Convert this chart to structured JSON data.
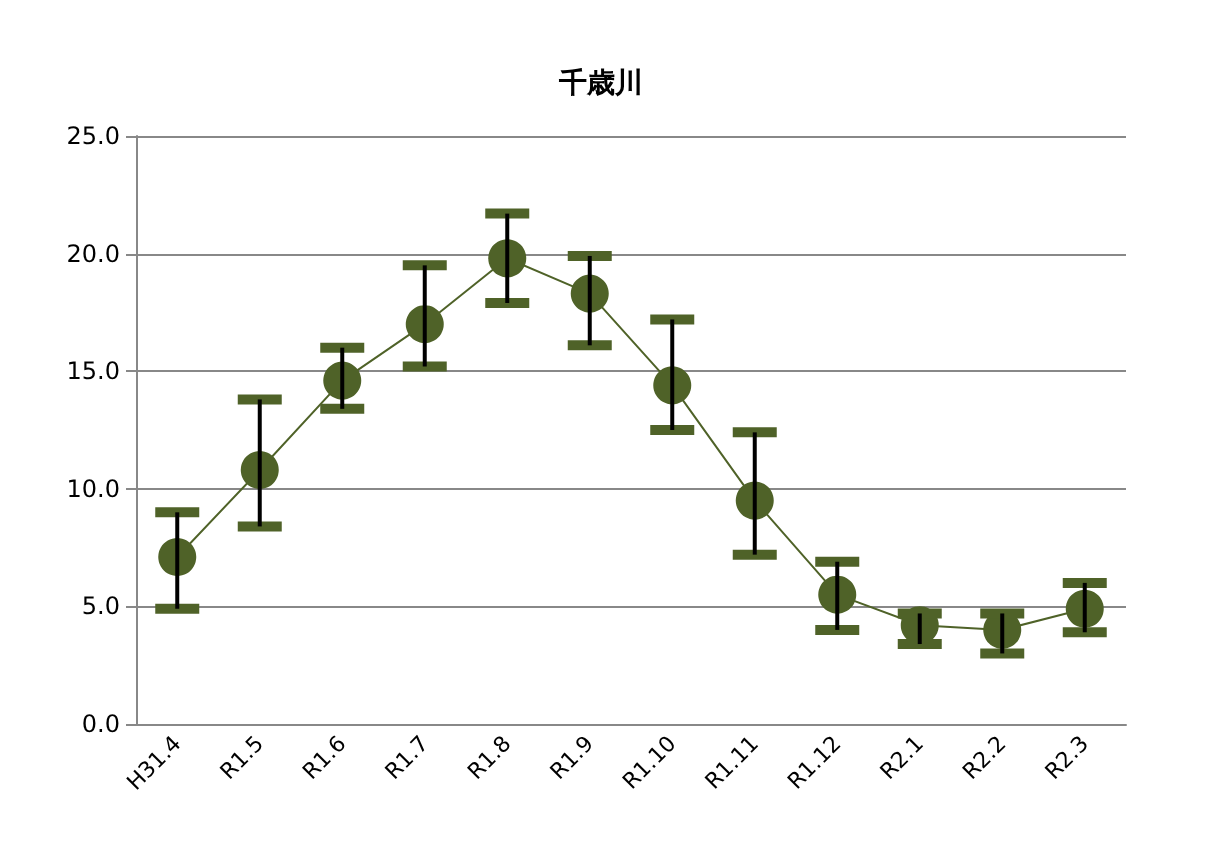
{
  "chart_data": {
    "type": "line",
    "title": "千歳川",
    "categories": [
      "H31.4",
      "R1.5",
      "R1.6",
      "R1.7",
      "R1.8",
      "R1.9",
      "R1.10",
      "R1.11",
      "R1.12",
      "R2.1",
      "R2.2",
      "R2.3"
    ],
    "series": [
      {
        "color": "#4f6228",
        "values": [
          7.1,
          10.8,
          14.6,
          17.0,
          19.8,
          18.3,
          14.4,
          9.5,
          5.5,
          4.2,
          4.0,
          4.9
        ],
        "errors": [
          [
            4.9,
            9.0
          ],
          [
            8.4,
            13.8
          ],
          [
            13.4,
            16.0
          ],
          [
            15.2,
            19.5
          ],
          [
            17.9,
            21.7
          ],
          [
            16.1,
            19.9
          ],
          [
            12.5,
            17.2
          ],
          [
            7.2,
            12.4
          ],
          [
            4.0,
            6.9
          ],
          [
            3.4,
            4.7
          ],
          [
            3.0,
            4.7
          ],
          [
            3.9,
            6.0
          ]
        ]
      }
    ],
    "ylim": [
      0,
      25
    ],
    "yticks": [
      {
        "value": 0,
        "label": "0.0"
      },
      {
        "value": 5,
        "label": "5.0"
      },
      {
        "value": 10,
        "label": "10.0"
      },
      {
        "value": 15,
        "label": "15.0"
      },
      {
        "value": 20,
        "label": "20.0"
      },
      {
        "value": 25,
        "label": "25.0"
      }
    ],
    "grid": "y",
    "marker": "circle",
    "line_style": "solid"
  }
}
